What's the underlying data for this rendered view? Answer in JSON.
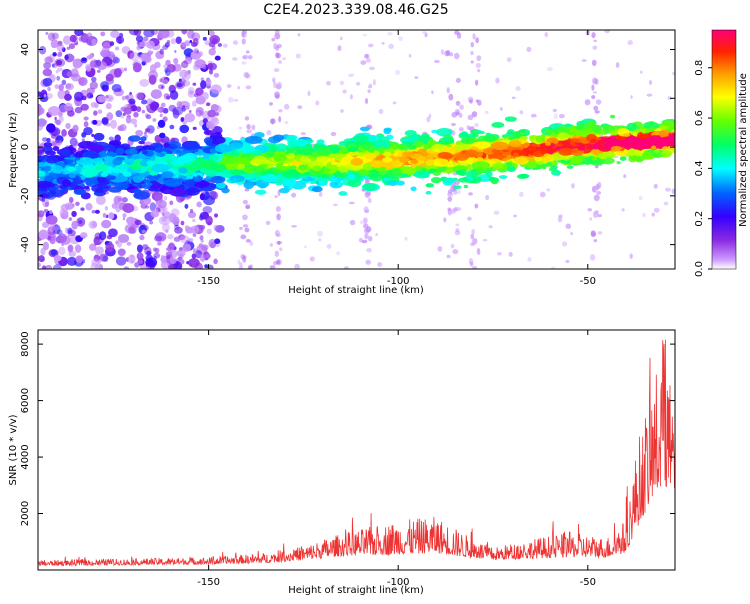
{
  "title": "C2E4.2023.339.08.46.G25",
  "chart_data": [
    {
      "type": "heatmap",
      "xlabel": "Height of straight line (km)",
      "ylabel": "Frequency (Hz)",
      "xlim": [
        -195,
        -27
      ],
      "ylim": [
        -50,
        48
      ],
      "xticks": [
        -150,
        -100,
        -50
      ],
      "xtick_labels": [
        "-150",
        "-100",
        "-50"
      ],
      "yticks": [
        -40,
        -20,
        0,
        20,
        40
      ],
      "ytick_labels": [
        "-40",
        "-20",
        "0",
        "20",
        "40"
      ],
      "grid": false,
      "colorbar": {
        "label": "Normalized spectral amplitude",
        "range": [
          0,
          0.95
        ],
        "ticks": [
          0.0,
          0.2,
          0.4,
          0.6,
          0.8
        ],
        "tick_labels": [
          "0.0",
          "0.2",
          "0.4",
          "0.6",
          "0.8"
        ],
        "colors": [
          "#ffffff",
          "#8a2be2",
          "#3300ff",
          "#00ffff",
          "#00ff00",
          "#ffff00",
          "#ff3300",
          "#ff0066"
        ]
      },
      "ridge": {
        "description_points": [
          {
            "x": -195,
            "y": -10
          },
          {
            "x": -150,
            "y": -7
          },
          {
            "x": -100,
            "y": -5
          },
          {
            "x": -70,
            "y": -2
          },
          {
            "x": -50,
            "y": 1
          },
          {
            "x": -27,
            "y": 3
          }
        ]
      },
      "noise_region_xmax": -147
    },
    {
      "type": "line",
      "xlabel": "Height of straight line (km)",
      "ylabel": "SNR (10 * v/v)",
      "xlim": [
        -195,
        -27
      ],
      "ylim": [
        0,
        8500
      ],
      "xticks": [
        -150,
        -100,
        -50
      ],
      "xtick_labels": [
        "-150",
        "-100",
        "-50"
      ],
      "yticks": [
        2000,
        4000,
        6000,
        8000
      ],
      "ytick_labels": [
        "2000",
        "4000",
        "6000",
        "8000"
      ],
      "grid": false,
      "series_color": "#ee3333",
      "envelope": [
        {
          "x": -195,
          "base": 150,
          "amp": 200
        },
        {
          "x": -150,
          "base": 200,
          "amp": 250
        },
        {
          "x": -135,
          "base": 250,
          "amp": 350
        },
        {
          "x": -125,
          "base": 350,
          "amp": 500
        },
        {
          "x": -115,
          "base": 500,
          "amp": 800
        },
        {
          "x": -100,
          "base": 550,
          "amp": 1200
        },
        {
          "x": -90,
          "base": 600,
          "amp": 1300
        },
        {
          "x": -82,
          "base": 450,
          "amp": 800
        },
        {
          "x": -75,
          "base": 350,
          "amp": 450
        },
        {
          "x": -65,
          "base": 400,
          "amp": 700
        },
        {
          "x": -55,
          "base": 450,
          "amp": 900
        },
        {
          "x": -45,
          "base": 450,
          "amp": 700
        },
        {
          "x": -40,
          "base": 600,
          "amp": 1200
        },
        {
          "x": -37,
          "base": 1500,
          "amp": 3000
        },
        {
          "x": -33,
          "base": 2500,
          "amp": 4000
        },
        {
          "x": -30,
          "base": 3000,
          "amp": 5200
        },
        {
          "x": -27,
          "base": 2500,
          "amp": 3000
        }
      ]
    }
  ]
}
